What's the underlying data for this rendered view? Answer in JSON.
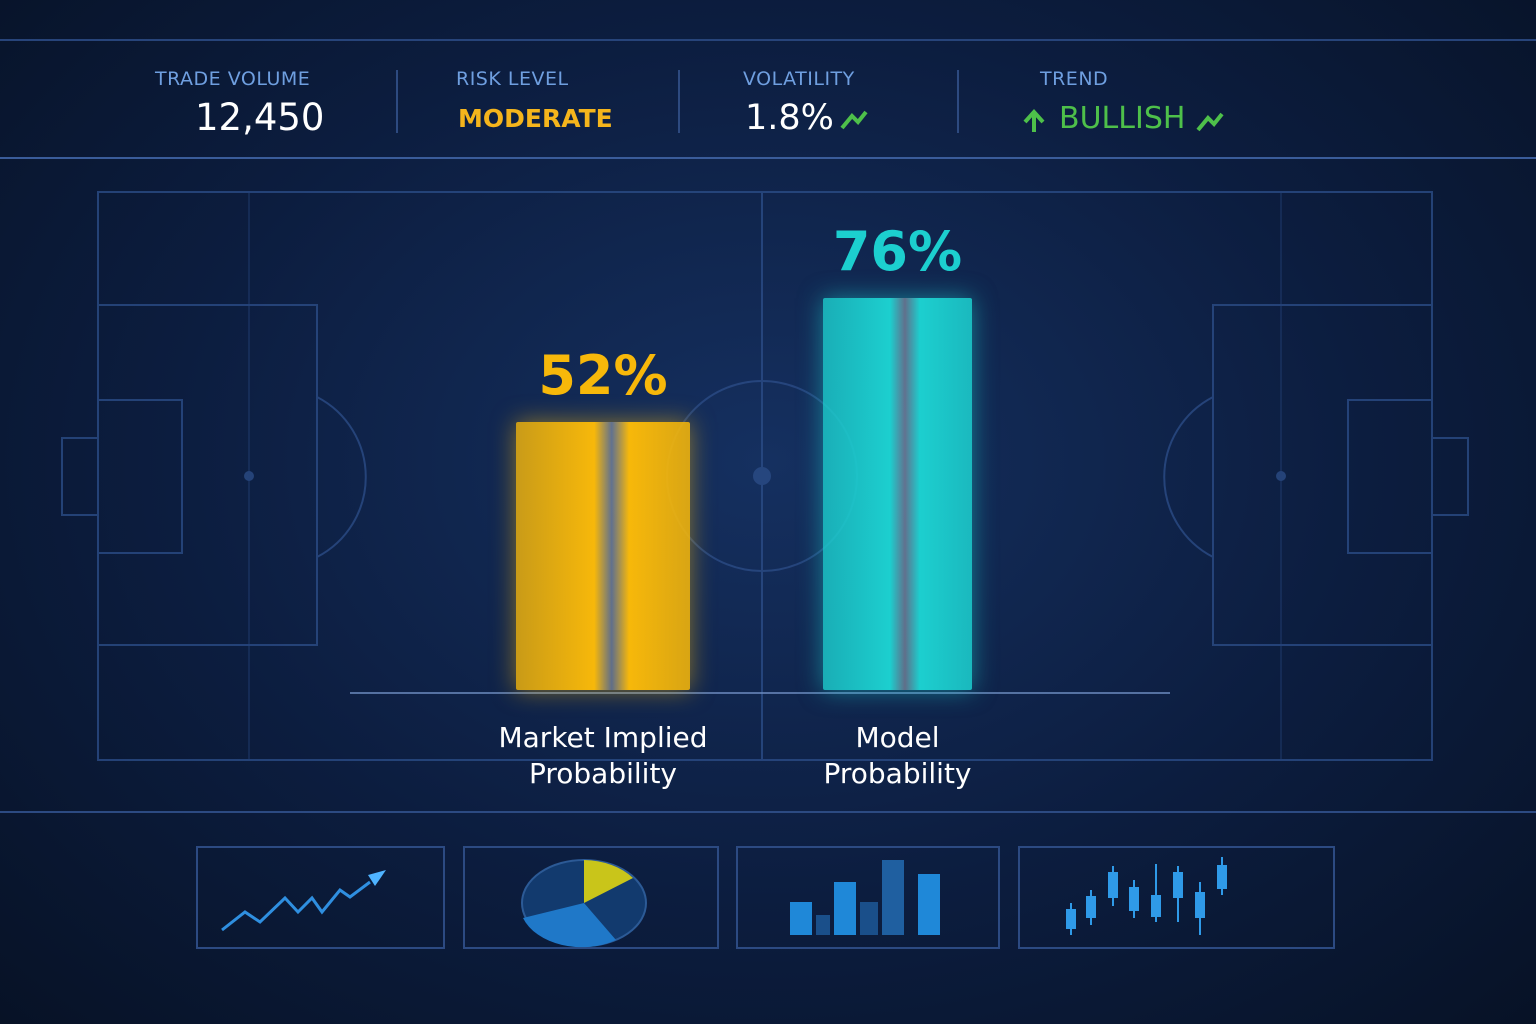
{
  "metrics": [
    {
      "label": "TRADE VOLUME",
      "value": "12,450"
    },
    {
      "label": "RISK LEVEL",
      "value": "MODERATE"
    },
    {
      "label": "VOLATILITY",
      "value": "1.8%"
    },
    {
      "label": "TREND",
      "value": "BULLISH"
    }
  ],
  "chart_data": {
    "type": "bar",
    "categories": [
      "Market Implied Probability",
      "Model Probability"
    ],
    "values": [
      52,
      76
    ],
    "value_labels": [
      "52%",
      "76%"
    ],
    "colors": [
      "#f7b80a",
      "#1ccfcf"
    ]
  }
}
